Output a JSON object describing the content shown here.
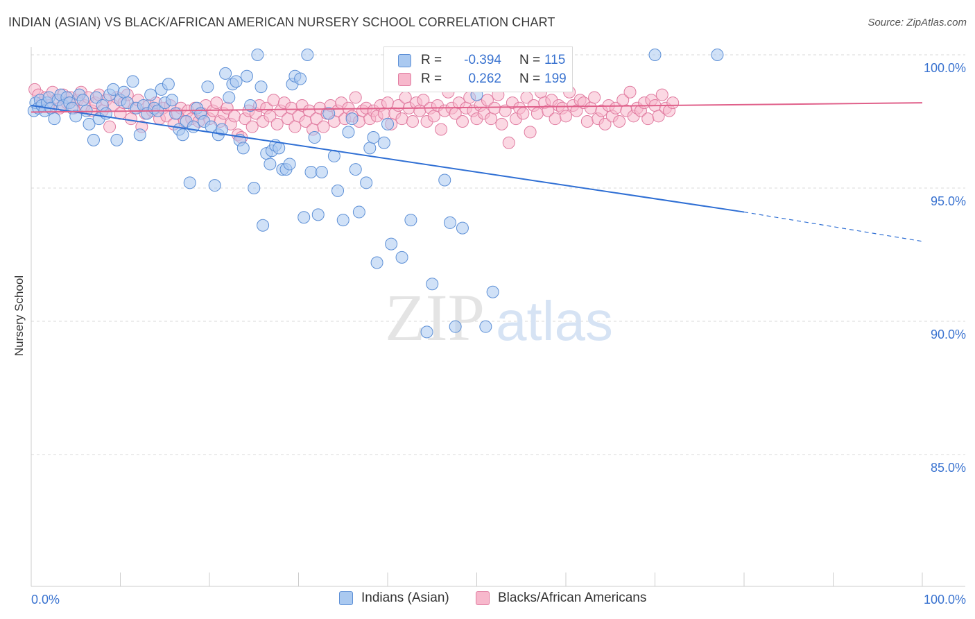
{
  "title": "INDIAN (ASIAN) VS BLACK/AFRICAN AMERICAN NURSERY SCHOOL CORRELATION CHART",
  "source": "Source: ZipAtlas.com",
  "watermark": {
    "zip": "ZIP",
    "atlas": "atlas"
  },
  "legend": {
    "r_label": "R =",
    "n_label": "N =",
    "rows": [
      {
        "r": "-0.394",
        "n": "115",
        "fill": "#aac9f0",
        "stroke": "#5c8fd6"
      },
      {
        "r": "0.262",
        "n": "199",
        "fill": "#f7b8cc",
        "stroke": "#e07ba0"
      }
    ]
  },
  "colors": {
    "blue_fill": "#aac9f0",
    "blue_stroke": "#5c8fd6",
    "blue_line": "#2f6fd4",
    "pink_fill": "#f7b8cc",
    "pink_stroke": "#e07ba0",
    "pink_line": "#e0608a",
    "axis_text": "#3a73d0",
    "grid": "#d8d8d8"
  },
  "chart_data": {
    "type": "scatter",
    "title": "INDIAN (ASIAN) VS BLACK/AFRICAN AMERICAN NURSERY SCHOOL CORRELATION CHART",
    "xlabel": "",
    "ylabel": "Nursery School",
    "xlim": [
      0,
      100
    ],
    "ylim": [
      80.5,
      100.9
    ],
    "x_ticks": [
      "0.0%",
      "100.0%"
    ],
    "y_ticks": [
      {
        "value": 100,
        "label": "100.0%"
      },
      {
        "value": 95,
        "label": "95.0%"
      },
      {
        "value": 90,
        "label": "90.0%"
      },
      {
        "value": 85,
        "label": "85.0%"
      }
    ],
    "grid": true,
    "legend_position": "top-center",
    "series": [
      {
        "name": "Indians (Asian)",
        "r": -0.394,
        "n": 115,
        "trend": {
          "x0": 0,
          "y0": 98.1,
          "x1": 80,
          "y1": 94.1,
          "dashed_to_x": 100,
          "dashed_to_y": 93.0
        },
        "points": [
          [
            0.3,
            97.9
          ],
          [
            0.5,
            98.2
          ],
          [
            0.8,
            98.0
          ],
          [
            1.0,
            98.3
          ],
          [
            1.2,
            98.1
          ],
          [
            1.5,
            97.9
          ],
          [
            1.8,
            98.2
          ],
          [
            2.0,
            98.4
          ],
          [
            2.2,
            98.0
          ],
          [
            2.6,
            97.6
          ],
          [
            3.0,
            98.3
          ],
          [
            3.3,
            98.5
          ],
          [
            3.6,
            98.1
          ],
          [
            4.0,
            98.4
          ],
          [
            4.3,
            98.2
          ],
          [
            4.6,
            98.0
          ],
          [
            5.0,
            97.7
          ],
          [
            5.4,
            98.5
          ],
          [
            5.8,
            98.3
          ],
          [
            6.2,
            97.9
          ],
          [
            6.5,
            97.4
          ],
          [
            7.0,
            96.8
          ],
          [
            7.3,
            98.4
          ],
          [
            7.6,
            97.6
          ],
          [
            8.0,
            98.1
          ],
          [
            8.4,
            97.8
          ],
          [
            8.8,
            98.5
          ],
          [
            9.2,
            98.7
          ],
          [
            9.6,
            96.8
          ],
          [
            10.0,
            98.3
          ],
          [
            10.4,
            98.6
          ],
          [
            10.8,
            98.2
          ],
          [
            11.4,
            99.0
          ],
          [
            11.8,
            98.0
          ],
          [
            12.2,
            97.0
          ],
          [
            12.6,
            98.1
          ],
          [
            13.0,
            97.8
          ],
          [
            13.4,
            98.5
          ],
          [
            13.8,
            98.0
          ],
          [
            14.2,
            97.9
          ],
          [
            14.6,
            98.7
          ],
          [
            15.0,
            98.2
          ],
          [
            15.4,
            98.9
          ],
          [
            15.8,
            98.3
          ],
          [
            16.2,
            97.8
          ],
          [
            16.6,
            97.2
          ],
          [
            17.0,
            97.0
          ],
          [
            17.4,
            97.5
          ],
          [
            17.8,
            95.2
          ],
          [
            18.2,
            97.3
          ],
          [
            18.6,
            98.0
          ],
          [
            19.0,
            97.8
          ],
          [
            19.4,
            97.5
          ],
          [
            19.8,
            98.8
          ],
          [
            20.2,
            97.3
          ],
          [
            20.6,
            95.1
          ],
          [
            21.0,
            97.0
          ],
          [
            21.4,
            97.2
          ],
          [
            21.8,
            99.3
          ],
          [
            22.2,
            98.4
          ],
          [
            22.6,
            98.9
          ],
          [
            23.0,
            99.0
          ],
          [
            23.4,
            96.8
          ],
          [
            23.8,
            96.5
          ],
          [
            24.2,
            99.2
          ],
          [
            24.6,
            98.1
          ],
          [
            25.0,
            95.0
          ],
          [
            25.4,
            100.0
          ],
          [
            25.8,
            98.8
          ],
          [
            26.0,
            93.6
          ],
          [
            26.4,
            96.3
          ],
          [
            26.8,
            95.9
          ],
          [
            27.0,
            96.4
          ],
          [
            27.4,
            96.6
          ],
          [
            27.8,
            96.5
          ],
          [
            28.2,
            95.7
          ],
          [
            28.6,
            95.7
          ],
          [
            29.0,
            95.9
          ],
          [
            29.3,
            98.9
          ],
          [
            29.6,
            99.2
          ],
          [
            30.2,
            99.1
          ],
          [
            30.6,
            93.9
          ],
          [
            31.0,
            100.0
          ],
          [
            31.4,
            95.6
          ],
          [
            31.8,
            96.9
          ],
          [
            32.2,
            94.0
          ],
          [
            32.6,
            95.6
          ],
          [
            33.4,
            97.8
          ],
          [
            34.0,
            96.2
          ],
          [
            34.4,
            94.9
          ],
          [
            35.0,
            93.8
          ],
          [
            35.6,
            97.1
          ],
          [
            36.0,
            97.6
          ],
          [
            36.4,
            95.7
          ],
          [
            36.8,
            94.1
          ],
          [
            37.6,
            95.2
          ],
          [
            38.0,
            96.5
          ],
          [
            38.4,
            96.9
          ],
          [
            38.8,
            92.2
          ],
          [
            39.6,
            96.7
          ],
          [
            40.0,
            97.4
          ],
          [
            40.4,
            92.9
          ],
          [
            41.6,
            92.4
          ],
          [
            42.6,
            93.8
          ],
          [
            44.4,
            89.6
          ],
          [
            45.0,
            91.4
          ],
          [
            46.4,
            95.3
          ],
          [
            47.0,
            93.7
          ],
          [
            47.6,
            89.8
          ],
          [
            48.4,
            93.5
          ],
          [
            50.0,
            98.5
          ],
          [
            51.0,
            89.8
          ],
          [
            51.8,
            91.1
          ],
          [
            70.0,
            100.0
          ],
          [
            77.0,
            100.0
          ]
        ]
      },
      {
        "name": "Blacks/African Americans",
        "r": 0.262,
        "n": 199,
        "trend": {
          "x0": 0,
          "y0": 97.85,
          "x1": 100,
          "y1": 98.2
        },
        "points": [
          [
            0.4,
            98.7
          ],
          [
            0.8,
            98.5
          ],
          [
            1.2,
            98.2
          ],
          [
            1.6,
            98.4
          ],
          [
            2.0,
            98.1
          ],
          [
            2.4,
            98.6
          ],
          [
            2.8,
            98.3
          ],
          [
            3.2,
            98.0
          ],
          [
            3.6,
            98.5
          ],
          [
            4.0,
            98.2
          ],
          [
            4.4,
            98.4
          ],
          [
            4.8,
            98.0
          ],
          [
            5.2,
            98.3
          ],
          [
            5.6,
            98.6
          ],
          [
            6.0,
            98.1
          ],
          [
            6.4,
            98.4
          ],
          [
            6.8,
            97.9
          ],
          [
            7.2,
            98.2
          ],
          [
            7.6,
            98.5
          ],
          [
            8.0,
            97.9
          ],
          [
            8.4,
            98.3
          ],
          [
            8.8,
            97.3
          ],
          [
            9.2,
            98.1
          ],
          [
            9.6,
            98.4
          ],
          [
            10.0,
            97.8
          ],
          [
            10.4,
            98.2
          ],
          [
            10.8,
            98.5
          ],
          [
            11.2,
            97.6
          ],
          [
            11.6,
            98.0
          ],
          [
            12.0,
            98.3
          ],
          [
            12.4,
            97.3
          ],
          [
            12.8,
            97.8
          ],
          [
            13.2,
            98.1
          ],
          [
            13.6,
            97.9
          ],
          [
            14.0,
            98.2
          ],
          [
            14.4,
            97.6
          ],
          [
            14.8,
            98.0
          ],
          [
            15.2,
            97.7
          ],
          [
            15.6,
            98.1
          ],
          [
            16.0,
            97.4
          ],
          [
            16.4,
            97.8
          ],
          [
            16.8,
            98.0
          ],
          [
            17.2,
            97.5
          ],
          [
            17.6,
            97.9
          ],
          [
            18.0,
            97.6
          ],
          [
            18.4,
            98.0
          ],
          [
            18.8,
            97.5
          ],
          [
            19.2,
            97.8
          ],
          [
            19.6,
            98.1
          ],
          [
            20.0,
            97.6
          ],
          [
            20.4,
            97.9
          ],
          [
            20.8,
            98.2
          ],
          [
            21.2,
            97.5
          ],
          [
            21.6,
            97.8
          ],
          [
            22.0,
            98.0
          ],
          [
            22.4,
            97.4
          ],
          [
            22.8,
            97.7
          ],
          [
            23.2,
            97.0
          ],
          [
            23.6,
            96.9
          ],
          [
            24.0,
            97.6
          ],
          [
            24.4,
            97.9
          ],
          [
            24.8,
            97.3
          ],
          [
            25.2,
            97.8
          ],
          [
            25.6,
            98.1
          ],
          [
            26.0,
            97.5
          ],
          [
            26.4,
            98.0
          ],
          [
            26.8,
            97.7
          ],
          [
            27.2,
            98.3
          ],
          [
            27.6,
            97.4
          ],
          [
            28.0,
            97.9
          ],
          [
            28.4,
            98.2
          ],
          [
            28.8,
            97.6
          ],
          [
            29.2,
            98.0
          ],
          [
            29.6,
            97.3
          ],
          [
            30.0,
            97.7
          ],
          [
            30.4,
            98.1
          ],
          [
            30.8,
            97.5
          ],
          [
            31.2,
            97.9
          ],
          [
            31.6,
            97.2
          ],
          [
            32.0,
            97.6
          ],
          [
            32.4,
            98.0
          ],
          [
            32.8,
            97.3
          ],
          [
            33.2,
            97.8
          ],
          [
            33.6,
            98.1
          ],
          [
            34.0,
            97.5
          ],
          [
            34.4,
            97.9
          ],
          [
            34.8,
            98.2
          ],
          [
            35.2,
            97.6
          ],
          [
            35.6,
            98.0
          ],
          [
            36.0,
            97.7
          ],
          [
            36.4,
            98.4
          ],
          [
            36.8,
            97.5
          ],
          [
            37.2,
            97.9
          ],
          [
            37.6,
            98.0
          ],
          [
            38.0,
            97.6
          ],
          [
            38.4,
            97.9
          ],
          [
            38.8,
            97.7
          ],
          [
            39.2,
            98.1
          ],
          [
            39.6,
            97.8
          ],
          [
            40.0,
            98.2
          ],
          [
            40.4,
            97.4
          ],
          [
            40.8,
            97.8
          ],
          [
            41.2,
            98.1
          ],
          [
            41.6,
            97.6
          ],
          [
            42.0,
            98.4
          ],
          [
            42.4,
            98.0
          ],
          [
            42.8,
            97.5
          ],
          [
            43.2,
            98.2
          ],
          [
            43.6,
            97.9
          ],
          [
            44.0,
            98.3
          ],
          [
            44.4,
            97.5
          ],
          [
            44.8,
            98.0
          ],
          [
            45.2,
            97.7
          ],
          [
            45.6,
            98.1
          ],
          [
            46.0,
            97.2
          ],
          [
            46.4,
            97.9
          ],
          [
            46.8,
            98.6
          ],
          [
            47.2,
            98.0
          ],
          [
            47.6,
            97.8
          ],
          [
            48.0,
            98.2
          ],
          [
            48.4,
            97.5
          ],
          [
            48.8,
            98.0
          ],
          [
            49.2,
            98.4
          ],
          [
            49.6,
            97.9
          ],
          [
            50.0,
            97.6
          ],
          [
            50.4,
            98.1
          ],
          [
            50.8,
            97.8
          ],
          [
            51.2,
            98.3
          ],
          [
            51.6,
            97.6
          ],
          [
            52.0,
            98.0
          ],
          [
            52.4,
            98.5
          ],
          [
            52.8,
            97.4
          ],
          [
            53.2,
            97.9
          ],
          [
            53.6,
            96.7
          ],
          [
            54.0,
            98.2
          ],
          [
            54.4,
            97.6
          ],
          [
            54.8,
            98.0
          ],
          [
            55.2,
            97.8
          ],
          [
            55.6,
            98.4
          ],
          [
            56.0,
            97.1
          ],
          [
            56.4,
            98.1
          ],
          [
            56.8,
            97.8
          ],
          [
            57.2,
            98.6
          ],
          [
            57.6,
            98.2
          ],
          [
            58.0,
            97.9
          ],
          [
            58.4,
            98.3
          ],
          [
            58.8,
            97.6
          ],
          [
            59.2,
            98.1
          ],
          [
            59.6,
            98.0
          ],
          [
            60.0,
            97.7
          ],
          [
            60.4,
            98.6
          ],
          [
            60.8,
            98.1
          ],
          [
            61.2,
            97.9
          ],
          [
            61.6,
            98.3
          ],
          [
            62.0,
            98.2
          ],
          [
            62.4,
            97.5
          ],
          [
            62.8,
            98.0
          ],
          [
            63.2,
            98.4
          ],
          [
            63.6,
            97.6
          ],
          [
            64.0,
            97.9
          ],
          [
            64.4,
            97.4
          ],
          [
            64.8,
            98.1
          ],
          [
            65.2,
            97.7
          ],
          [
            65.6,
            98.0
          ],
          [
            66.0,
            97.5
          ],
          [
            66.4,
            98.3
          ],
          [
            66.8,
            97.9
          ],
          [
            67.2,
            98.6
          ],
          [
            67.6,
            97.7
          ],
          [
            68.0,
            98.0
          ],
          [
            68.4,
            97.9
          ],
          [
            68.8,
            98.2
          ],
          [
            69.2,
            97.6
          ],
          [
            69.6,
            98.3
          ],
          [
            70.0,
            98.1
          ],
          [
            70.4,
            97.7
          ],
          [
            70.8,
            98.5
          ],
          [
            71.2,
            98.0
          ],
          [
            71.6,
            97.9
          ],
          [
            72.0,
            98.2
          ]
        ]
      }
    ]
  },
  "bottom_legend": [
    {
      "label": "Indians (Asian)"
    },
    {
      "label": "Blacks/African Americans"
    }
  ]
}
